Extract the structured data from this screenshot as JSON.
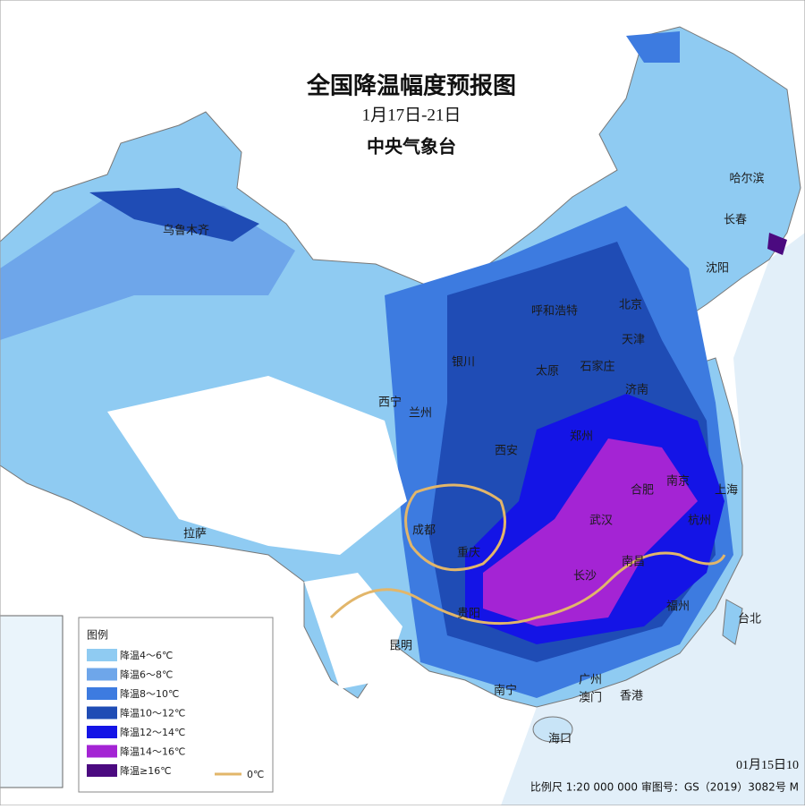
{
  "header": {
    "title": "全国降温幅度预报图",
    "period": "1月17日-21日",
    "agency": "中央气象台"
  },
  "cities": [
    "乌鲁木齐",
    "哈尔滨",
    "长春",
    "沈阳",
    "呼和浩特",
    "北京",
    "天津",
    "银川",
    "太原",
    "石家庄",
    "济南",
    "西宁",
    "兰州",
    "郑州",
    "西安",
    "合肥",
    "南京",
    "上海",
    "成都",
    "武汉",
    "杭州",
    "重庆",
    "长沙",
    "南昌",
    "拉萨",
    "贵阳",
    "福州",
    "台北",
    "昆明",
    "南宁",
    "广州",
    "澳门",
    "香港",
    "海口"
  ],
  "legend": {
    "title": "图例",
    "items": [
      {
        "label": "降温4～6℃",
        "color": "#8fcbf2"
      },
      {
        "label": "降温6～8℃",
        "color": "#6ea6ea"
      },
      {
        "label": "降温8～10℃",
        "color": "#3d7be0"
      },
      {
        "label": "降温10～12℃",
        "color": "#1f4cb5"
      },
      {
        "label": "降温12～14℃",
        "color": "#1414e6"
      },
      {
        "label": "降温14～16℃",
        "color": "#a424d4"
      },
      {
        "label": "降温≥16℃",
        "color": "#4b0a80"
      }
    ],
    "contour": "0℃"
  },
  "footer": {
    "issued": "01月15日10",
    "scale": "比例尺 1:20 000 000  审图号：GS（2019）3082号 M"
  }
}
